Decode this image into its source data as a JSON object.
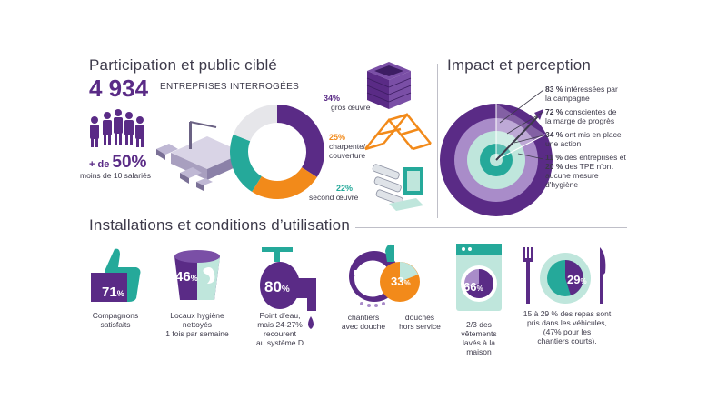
{
  "participation": {
    "title": "Participation et public ciblé",
    "count": "4 934",
    "count_label": "ENTREPRISES INTERROGÉES",
    "small_firms_prefix": "+ de",
    "small_firms_value": "50%",
    "small_firms_label": "moins de 10 salariés",
    "segments": [
      {
        "value": "34%",
        "label": "gros œuvre",
        "share": 34,
        "color": "#5a2b86"
      },
      {
        "value": "25%",
        "label_line1": "charpente/",
        "label_line2": "couverture",
        "share": 25,
        "color": "#f28a1a"
      },
      {
        "value": "22%",
        "label": "second œuvre",
        "share": 22,
        "color": "#25a99a"
      }
    ]
  },
  "impact": {
    "title": "Impact et perception",
    "items": [
      {
        "value": "83 %",
        "line1": " intéressées par",
        "line2": "la campagne"
      },
      {
        "value": "72 %",
        "line1": " conscientes de",
        "line2": "la marge de progrès"
      },
      {
        "value": "34 %",
        "line1": " ont mis en place",
        "line2": "une action"
      },
      {
        "value": "11 %",
        "line1": " des entreprises et",
        "value2": "20 %",
        "line2": " des TPE n'ont",
        "line3": "aucune mesure",
        "line4": "d'hygiène"
      }
    ]
  },
  "installations": {
    "title": "Installations et conditions d’utilisation",
    "thumb": {
      "value": "71",
      "unit": "%",
      "line1": "Compagnons",
      "line2": "satisfaits"
    },
    "locaux": {
      "value": "46",
      "unit": "%",
      "line1": "Locaux hygiène",
      "line2": "nettoyés",
      "line3": "1 fois par semaine"
    },
    "eau": {
      "value": "80",
      "unit": "%",
      "line1": "Point d’eau,",
      "line2": "mais 24-27%",
      "line3": "recourent",
      "line4": "au système D"
    },
    "douche": {
      "value1": "56",
      "unit1": "%",
      "value2": "33",
      "unit2": "%",
      "label1_line1": "chantiers",
      "label1_line2": "avec douche",
      "label2_line1": "douches",
      "label2_line2": "hors service"
    },
    "vetements": {
      "value": "66",
      "unit": "%",
      "line1": "2/3 des",
      "line2": "vêtements",
      "line3": "lavés à la",
      "line4": "maison"
    },
    "repas": {
      "value": "29",
      "unit": "%",
      "line1": "15 à 29 % des repas sont",
      "line2": "pris dans les véhicules,",
      "line3": "(47% pour les",
      "line4": "chantiers courts)."
    }
  },
  "colors": {
    "purple": "#5a2b86",
    "orange": "#f28a1a",
    "teal": "#25a99a",
    "mint": "#bfe6dc",
    "lavender": "#a98cc9"
  }
}
